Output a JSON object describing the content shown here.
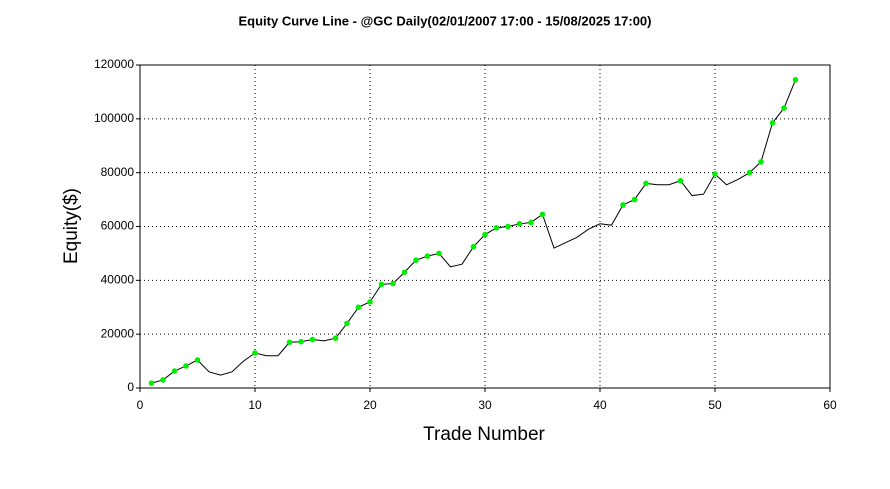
{
  "chart_data": {
    "type": "line",
    "title": "Equity Curve Line - @GC Daily(02/01/2007 17:00 - 15/08/2025 17:00)",
    "xlabel": "Trade Number",
    "ylabel": "Equity($)",
    "x": [
      1,
      2,
      3,
      4,
      5,
      6,
      7,
      8,
      9,
      10,
      11,
      12,
      13,
      14,
      15,
      16,
      17,
      18,
      19,
      20,
      21,
      22,
      23,
      24,
      25,
      26,
      27,
      28,
      29,
      30,
      31,
      32,
      33,
      34,
      35,
      36,
      37,
      38,
      39,
      40,
      41,
      42,
      43,
      44,
      45,
      46,
      47,
      48,
      49,
      50,
      51,
      52,
      53,
      54,
      55,
      56,
      57
    ],
    "series": [
      {
        "name": "Equity",
        "color": "#000000",
        "marker_color": "#00ee00",
        "values": [
          1800,
          3000,
          6300,
          8200,
          10400,
          6000,
          4800,
          6000,
          10000,
          13000,
          12000,
          12000,
          17000,
          17200,
          18000,
          17500,
          18500,
          24000,
          30000,
          32000,
          38500,
          38800,
          43000,
          47500,
          49000,
          50000,
          45000,
          46000,
          52500,
          57000,
          59500,
          60000,
          61000,
          61500,
          64500,
          52000,
          54000,
          56000,
          59000,
          61000,
          60500,
          68000,
          70000,
          76000,
          75500,
          75500,
          77000,
          71500,
          72000,
          79500,
          75500,
          77500,
          80000,
          84000,
          98500,
          104000,
          114500
        ]
      }
    ],
    "xlim": [
      0,
      60
    ],
    "xticks": [
      0,
      10,
      20,
      30,
      40,
      50,
      60
    ],
    "ylim": [
      0,
      120000
    ],
    "yticks": [
      0,
      20000,
      40000,
      60000,
      80000,
      100000,
      120000
    ],
    "grid": true
  }
}
